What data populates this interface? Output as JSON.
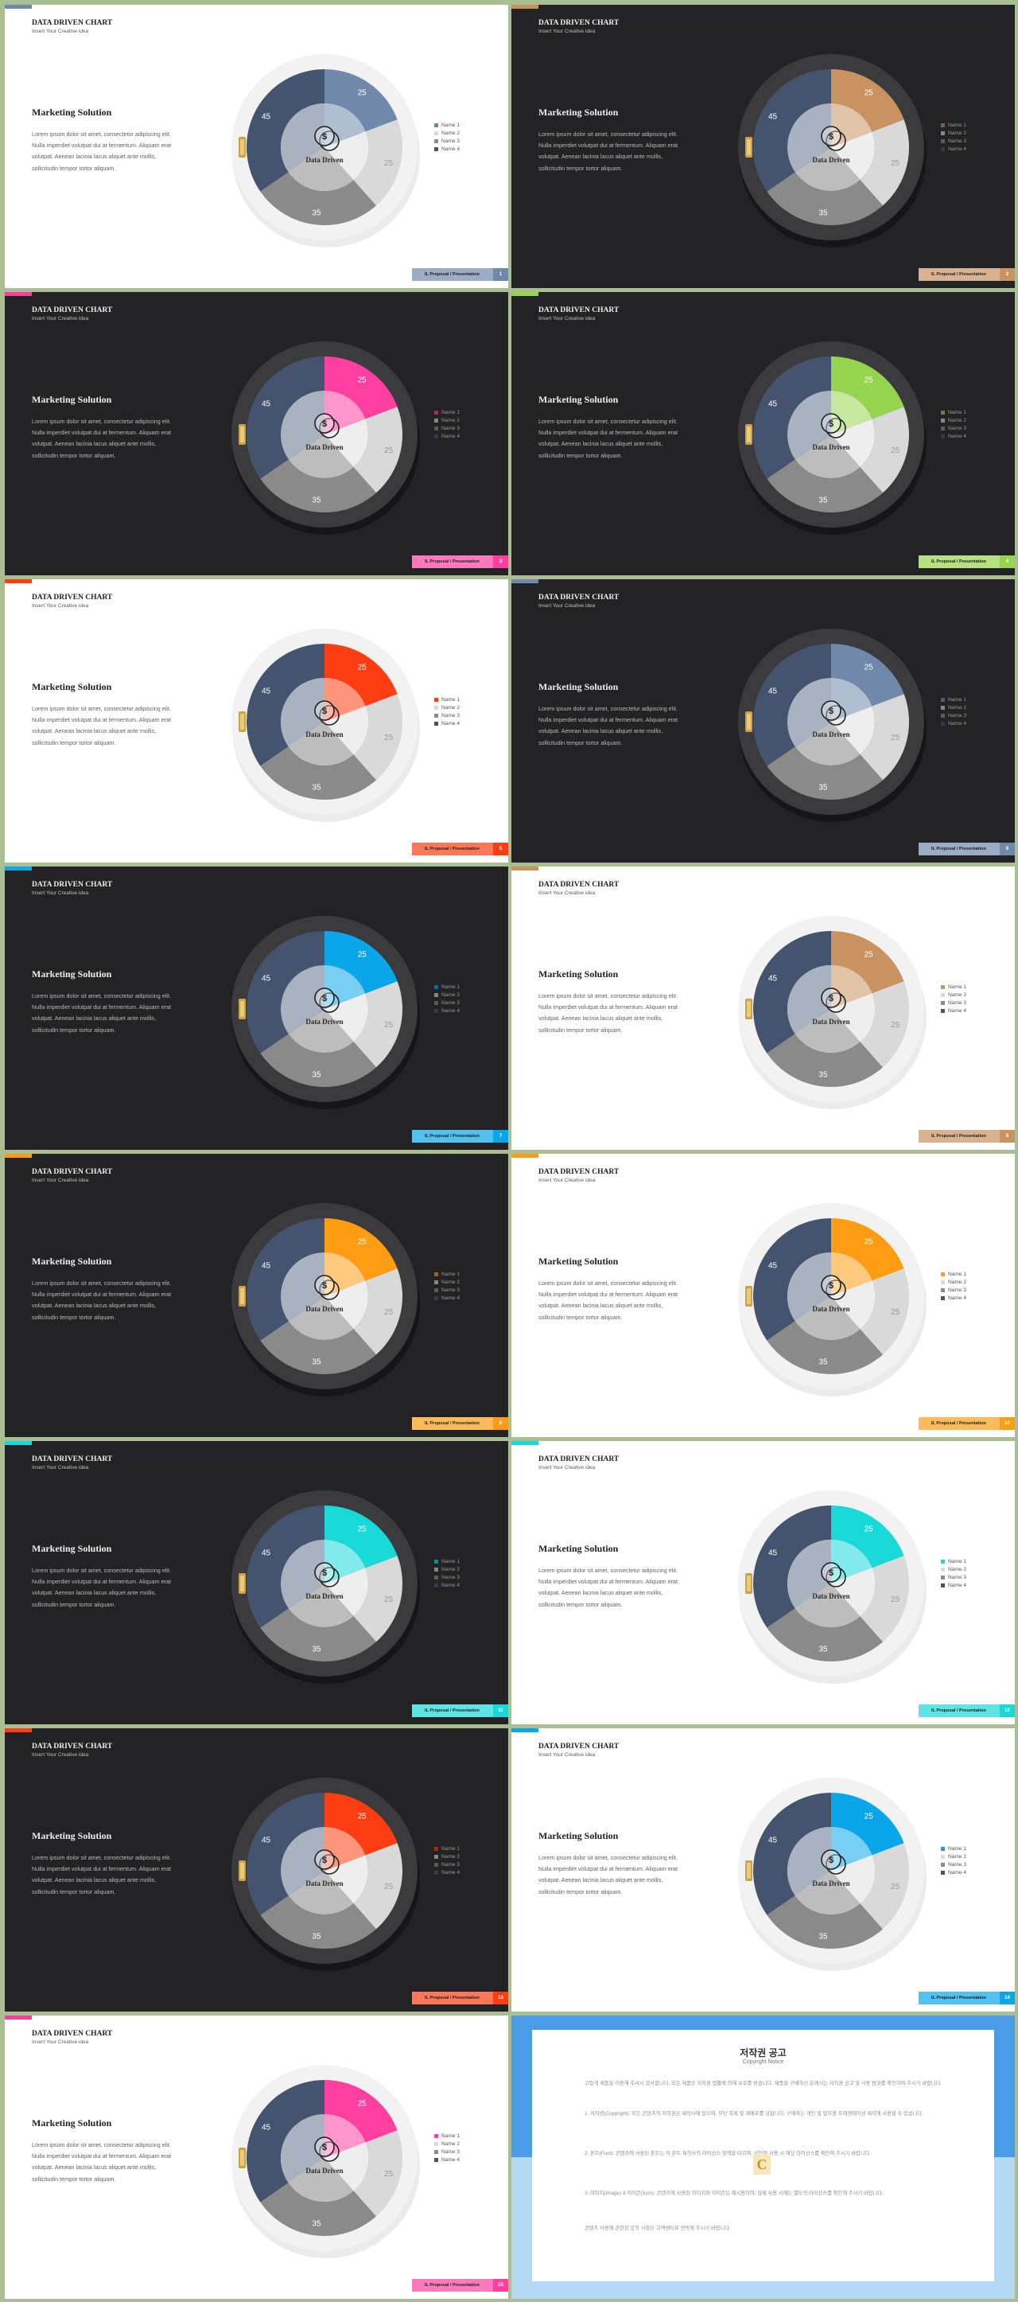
{
  "texts": {
    "title": "DATA DRIVEN CHART",
    "subtitle": "Insert Your Creative idea",
    "heading": "Marketing Solution",
    "body": "Lorem ipsum dolor sit amet, consectetur adipiscing elit. Nulla imperdiet volutpat dui at fermentum. Aliquam erat volutpat. Aenean lacinia lacus aliquet ante mollis, sollicitudin tempor tortor aliquam.",
    "center_label": "Data Driven",
    "currency_symbol": "$",
    "footer_label": "IL Proposal / Presentation",
    "legend": [
      "Name 1",
      "Name 2",
      "Name 3",
      "Name 4"
    ]
  },
  "chart_data": {
    "type": "pie",
    "categories": [
      "Name 1",
      "Name 2",
      "Name 3",
      "Name 4"
    ],
    "values": [
      25,
      25,
      35,
      45
    ],
    "slice_labels": [
      "25",
      "25",
      "35",
      "45"
    ]
  },
  "slides": [
    {
      "theme": "light",
      "accent": "#7089ab",
      "page": "1"
    },
    {
      "theme": "dark",
      "accent": "#c89360",
      "page": "2"
    },
    {
      "theme": "dark",
      "accent": "#ff3fa0",
      "page": "3"
    },
    {
      "theme": "dark",
      "accent": "#95d44e",
      "page": "4"
    },
    {
      "theme": "light",
      "accent": "#ff3d12",
      "page": "5"
    },
    {
      "theme": "dark",
      "accent": "#7089ab",
      "page": "6"
    },
    {
      "theme": "dark",
      "accent": "#09a6ea",
      "page": "7"
    },
    {
      "theme": "light",
      "accent": "#c89360",
      "page": "8"
    },
    {
      "theme": "dark",
      "accent": "#ff9d12",
      "page": "9"
    },
    {
      "theme": "light",
      "accent": "#ff9d12",
      "page": "10"
    },
    {
      "theme": "dark",
      "accent": "#19d8d8",
      "page": "11"
    },
    {
      "theme": "light",
      "accent": "#19d8d8",
      "page": "12"
    },
    {
      "theme": "dark",
      "accent": "#ff3d12",
      "page": "13"
    },
    {
      "theme": "light",
      "accent": "#09a6ea",
      "page": "14"
    },
    {
      "theme": "light",
      "accent": "#ff3fa0",
      "page": "15"
    }
  ],
  "copyright": {
    "title": "저작권 공고",
    "subtitle": "Copyright Notice",
    "accent": "#4a9be8",
    "accent_light": "#b3d8f4",
    "logo_letter": "C",
    "paragraphs": [
      "고맙게 제품을 이용해 주셔서 감사합니다. 모든 제품은 저작권 법률에 의해 보호를 받습니다. 제품을 구매하신 분께서는 저작권 공고 및 사용 범위를 확인하여 주시기 바랍니다.",
      "1. 저작권(Copyright): 모든 콘텐츠의 저작권은 제작사에 있으며, 무단 복제 및 재배포를 금합니다. 구매자는 개인 및 업무용 프레젠테이션 제작에 사용할 수 있습니다.",
      "2. 폰트(Font): 콘텐츠에 사용된 폰트는 각 폰트 제작사의 라이선스 정책을 따르며, 상업적 사용 시 해당 라이선스를 확인해 주시기 바랍니다.",
      "3. 이미지(Image) & 아이콘(Icon): 콘텐츠에 사용된 이미지와 아이콘은 예시용이며, 실제 사용 시에는 별도의 라이선스를 확인해 주시기 바랍니다.",
      "콘텐츠 사용에 관련된 문의 사항은 고객센터로 연락해 주시기 바랍니다."
    ]
  }
}
